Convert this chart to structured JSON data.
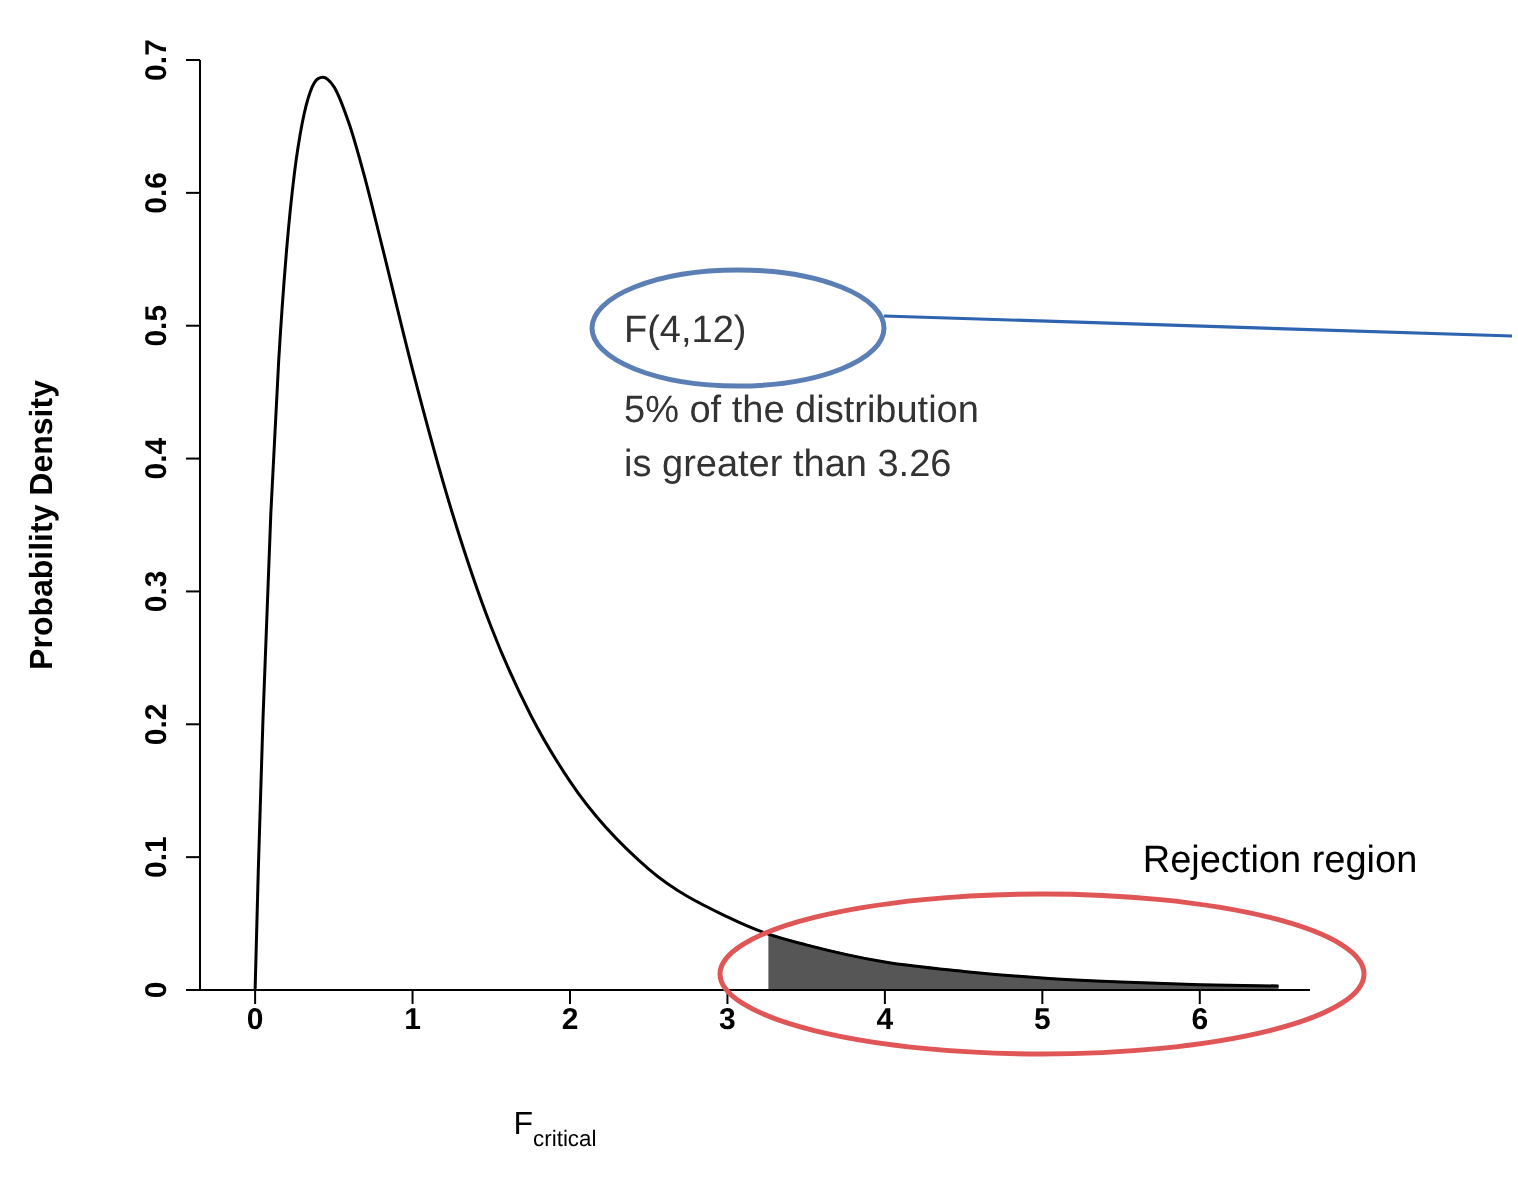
{
  "chart_data": {
    "type": "line",
    "xlabel": "F$_{critical}$",
    "ylabel": "Probability Density",
    "xlim": [
      -0.35,
      6.7
    ],
    "ylim": [
      0,
      0.7
    ],
    "xticks": [
      0,
      1,
      2,
      3,
      4,
      5,
      6
    ],
    "yticks": [
      0,
      0.1,
      0.2,
      0.3,
      0.4,
      0.5,
      0.6,
      0.7
    ],
    "marker": "none",
    "line_style": "solid",
    "series": [
      {
        "color": "#000000",
        "x": [
          0,
          0.02,
          0.05,
          0.1,
          0.15,
          0.2,
          0.25,
          0.3,
          0.35,
          0.4,
          0.43,
          0.5,
          0.6,
          0.7,
          0.8,
          1,
          1.25,
          1.5,
          1.75,
          2,
          2.5,
          3,
          3.26,
          3.5,
          4,
          4.5,
          5,
          5.5,
          6,
          6.5
        ],
        "values": [
          0,
          0.089,
          0.204,
          0.359,
          0.474,
          0.557,
          0.615,
          0.653,
          0.676,
          0.686,
          0.687,
          0.68,
          0.651,
          0.61,
          0.563,
          0.467,
          0.36,
          0.273,
          0.207,
          0.157,
          0.091,
          0.055,
          0.042,
          0.034,
          0.021,
          0.014,
          0.009,
          0.006,
          0.004,
          0.003
        ]
      },
      {
        "type": "area",
        "color": "#444444",
        "x": [
          3.26,
          3.5,
          4,
          4.5,
          5,
          5.5,
          6,
          6.5
        ],
        "values": [
          0.042,
          0.034,
          0.021,
          0.014,
          0.009,
          0.006,
          0.004,
          0.003
        ]
      }
    ],
    "annotations": [
      "F(4,12)",
      "5% of the distribution",
      "is greater than 3.26",
      "Rejection region"
    ]
  }
}
